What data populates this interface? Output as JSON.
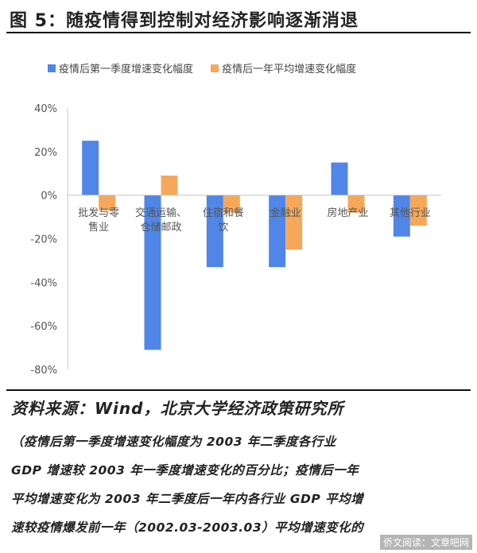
{
  "figure_title": "图 5：随疫情得到控制对经济影响逐渐消退",
  "source": "资料来源：Wind，北京大学经济政策研究所",
  "note_lines": [
    "（疫情后第一季度增速变化幅度为 2003 年二季度各行业",
    "GDP 增速较 2003 年一季度增速变化的百分比；疫情后一年",
    "平均增速变化为 2003 年二季度后一年内各行业 GDP 平均增",
    "速较疫情爆发前一年（2002.03-2003.03）平均增速变化的"
  ],
  "watermark": "侨文阅读：文章吧网",
  "colors": {
    "series1": "#4F86E8",
    "series2": "#F6A85A",
    "axis": "#c8c8c8",
    "tick_text": "#555555"
  },
  "chart_data": {
    "type": "bar",
    "categories": [
      [
        "批发与零",
        "售业"
      ],
      [
        "交通运输、",
        "仓储邮政"
      ],
      [
        "住宿和餐",
        "饮"
      ],
      [
        "金融业"
      ],
      [
        "房地产业"
      ],
      [
        "其他行业"
      ]
    ],
    "series": [
      {
        "name": "疫情后第一季度增速变化幅度",
        "values": [
          25,
          -71,
          -33,
          -33,
          15,
          -19
        ]
      },
      {
        "name": "疫情后一年平均增速变化幅度",
        "values": [
          -7,
          9,
          -8,
          -25,
          -8,
          -14
        ]
      }
    ],
    "ylim": [
      -80,
      40
    ],
    "yticks": [
      "40%",
      "20%",
      "0%",
      "-20%",
      "-40%",
      "-60%",
      "-80%"
    ],
    "ytick_values": [
      40,
      20,
      0,
      -20,
      -40,
      -60,
      -80
    ],
    "legend": "top",
    "grid": false
  }
}
